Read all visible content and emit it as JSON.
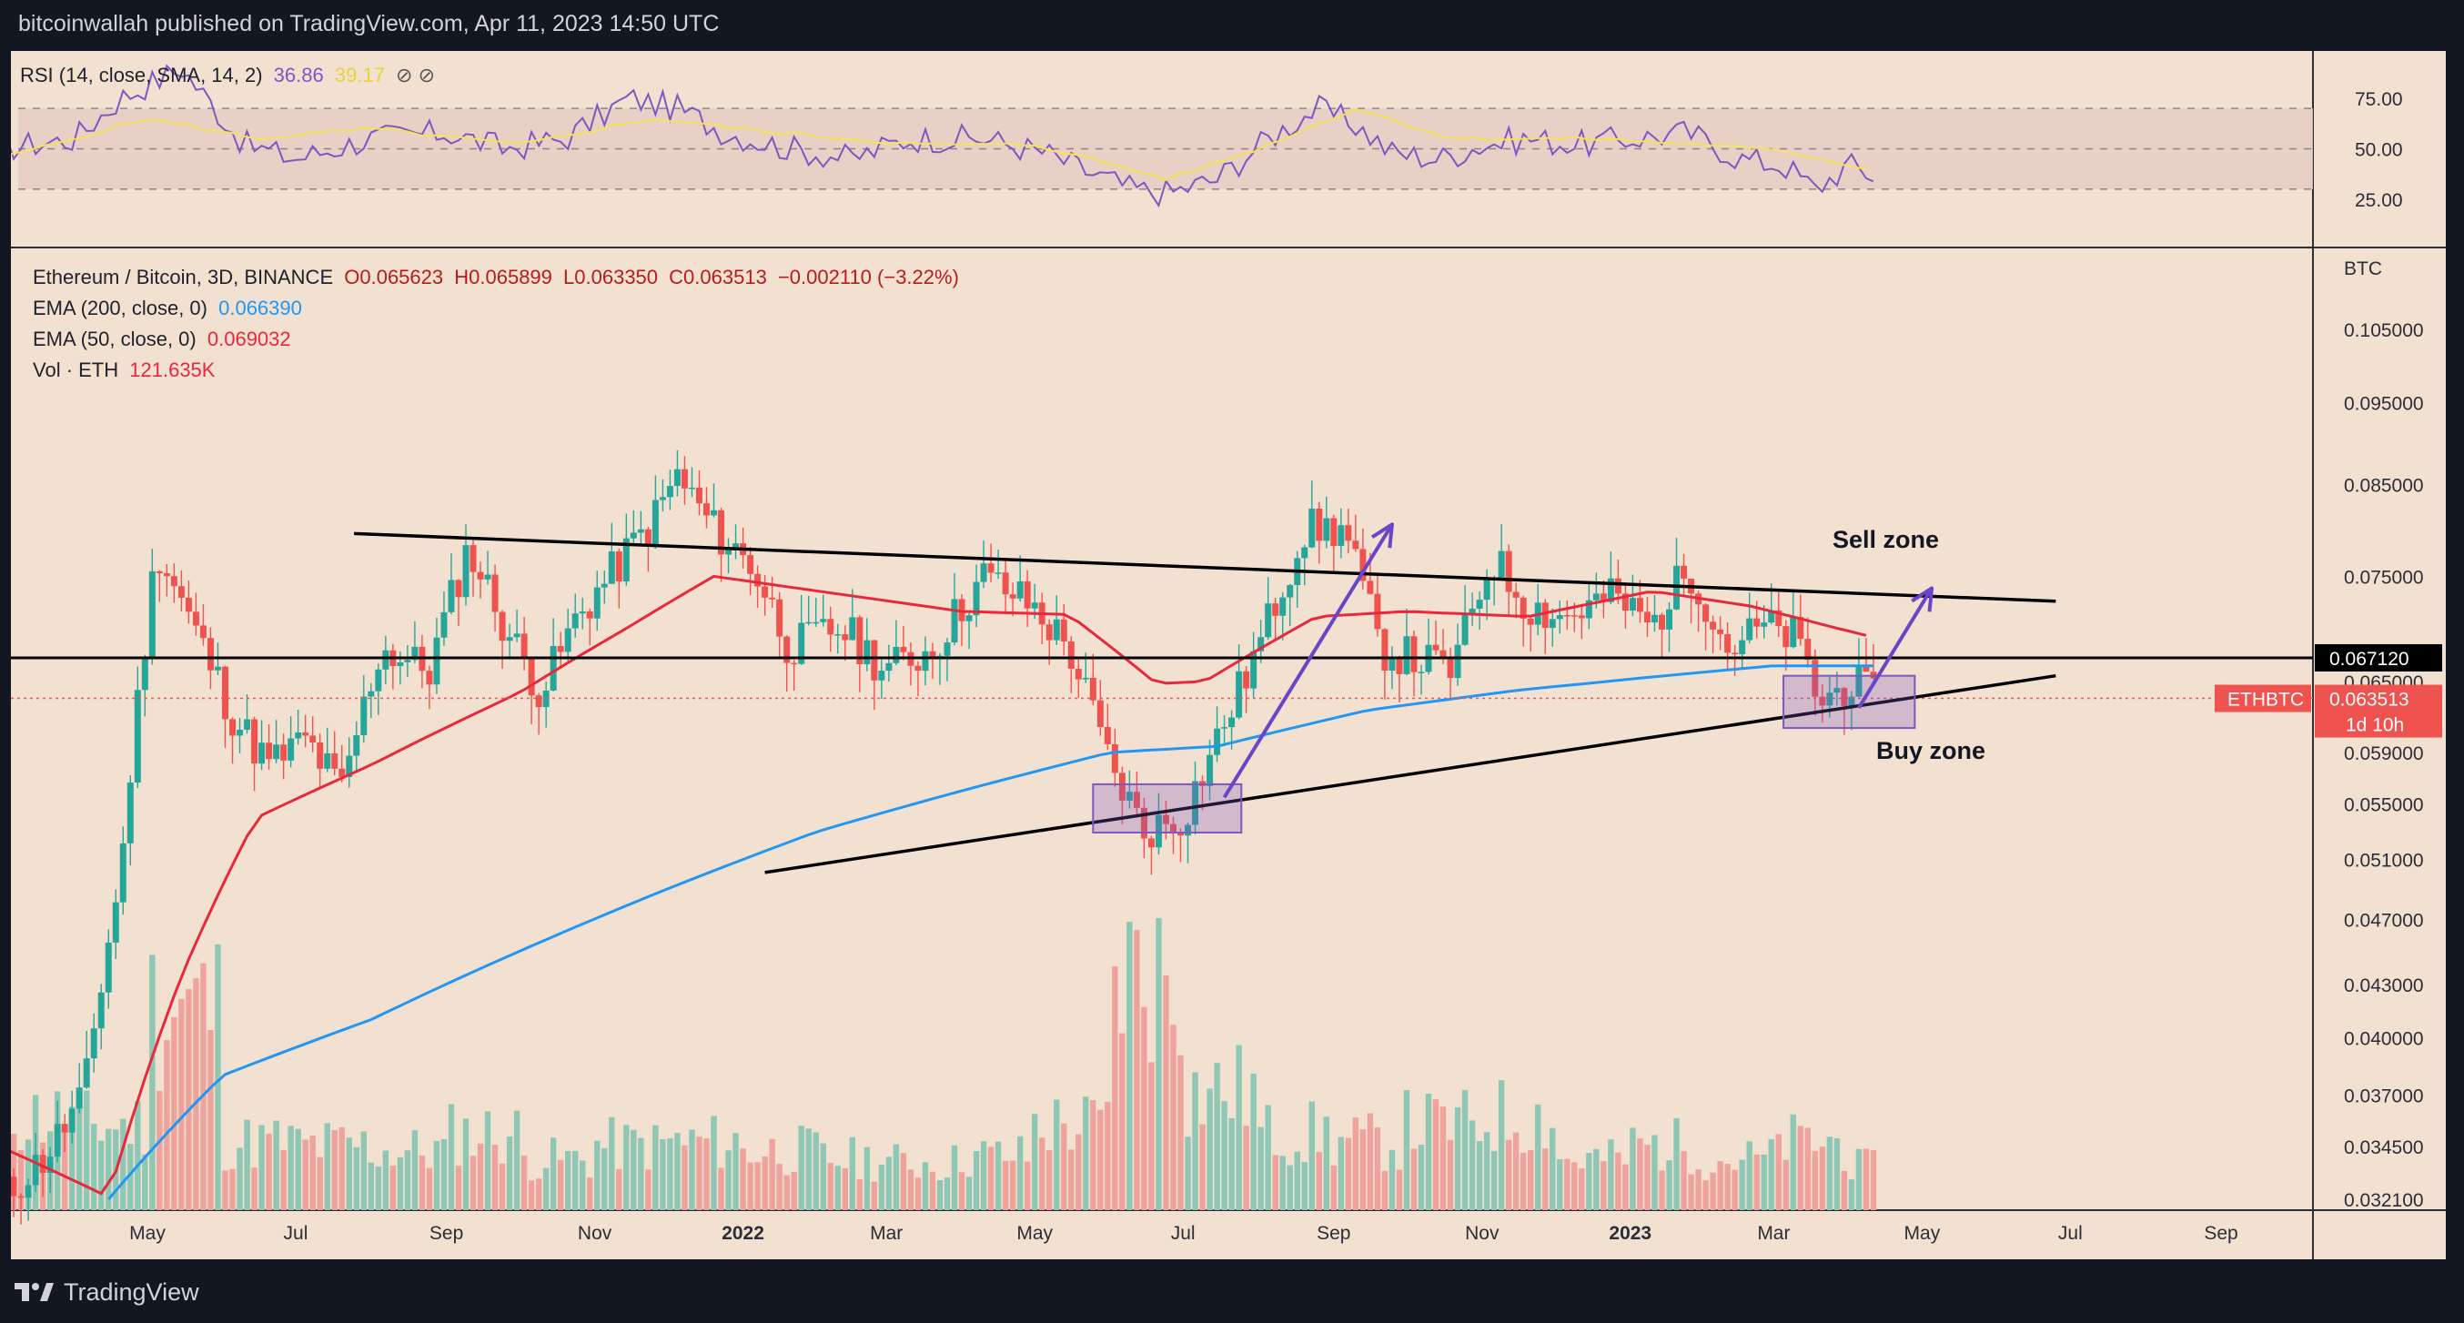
{
  "header": {
    "text": "bitcoinwallah published on TradingView.com, Apr 11, 2023 14:50 UTC"
  },
  "footer": {
    "brand": "TradingView"
  },
  "rsi_legend": {
    "name": "RSI (14, close, SMA, 14, 2)",
    "value1": "36.86",
    "value2": "39.17",
    "icons": "⊘ ⊘"
  },
  "main_legend": {
    "symbol": "Ethereum / Bitcoin, 3D, BINANCE",
    "open": "O0.065623",
    "high": "H0.065899",
    "low": "L0.063350",
    "close": "C0.063513",
    "change": "−0.002110 (−3.22%)",
    "ema200_label": "EMA (200, close, 0)",
    "ema200_value": "0.066390",
    "ema50_label": "EMA (50, close, 0)",
    "ema50_value": "0.069032",
    "vol_label": "Vol · ETH",
    "vol_value": "121.635K"
  },
  "annotations": {
    "sell_zone": "Sell zone",
    "buy_zone": "Buy zone"
  },
  "colors": {
    "background": "#f2e1d0",
    "up": "#26a69a",
    "down": "#ef5350",
    "ema200": "#2196f3",
    "ema50": "#e8283c",
    "rsi": "#7e57c2",
    "rsi_sma": "#f5e25a",
    "trendline": "#000000",
    "arrow": "#6a45c8"
  },
  "chart_data": [
    {
      "type": "line",
      "title": "RSI (14, close, SMA, 14, 2)",
      "yticks": [
        "75.00",
        "50.00",
        "25.00"
      ],
      "ylim": [
        15,
        95
      ],
      "bands": [
        30,
        50,
        70
      ],
      "series": [
        {
          "name": "RSI",
          "x": [
            "2021-03-01",
            "2021-04-01",
            "2021-04-20",
            "2021-05-15",
            "2021-06-10",
            "2021-07-01",
            "2021-08-01",
            "2021-09-01",
            "2021-09-25",
            "2021-10-20",
            "2021-11-15",
            "2021-12-05",
            "2021-12-25",
            "2022-01-20",
            "2022-02-15",
            "2022-03-10",
            "2022-04-10",
            "2022-05-05",
            "2022-05-20",
            "2022-06-10",
            "2022-06-25",
            "2022-07-15",
            "2022-08-05",
            "2022-08-25",
            "2022-09-10",
            "2022-09-25",
            "2022-10-15",
            "2022-11-01",
            "2022-11-20",
            "2022-12-10",
            "2023-01-01",
            "2023-01-25",
            "2023-02-15",
            "2023-03-05",
            "2023-03-18",
            "2023-04-01",
            "2023-04-11"
          ],
          "values": [
            50,
            55,
            75,
            90,
            52,
            45,
            55,
            58,
            50,
            55,
            75,
            70,
            58,
            50,
            45,
            55,
            55,
            48,
            40,
            30,
            28,
            35,
            55,
            70,
            62,
            48,
            45,
            52,
            55,
            52,
            55,
            58,
            45,
            42,
            30,
            42,
            36.86
          ]
        },
        {
          "name": "SMA",
          "x": [
            "2021-03-01",
            "2021-05-01",
            "2021-06-15",
            "2021-08-01",
            "2021-10-01",
            "2021-11-25",
            "2022-01-15",
            "2022-03-15",
            "2022-05-01",
            "2022-06-25",
            "2022-08-01",
            "2022-09-10",
            "2022-10-20",
            "2022-12-15",
            "2023-02-01",
            "2023-03-10",
            "2023-04-11"
          ],
          "values": [
            45,
            65,
            55,
            60,
            52,
            65,
            58,
            52,
            52,
            35,
            50,
            70,
            55,
            55,
            52,
            48,
            39.17
          ]
        }
      ]
    },
    {
      "type": "candlestick",
      "title": "Ethereum / Bitcoin, 3D, BINANCE",
      "ylabel": "BTC",
      "scale": "log",
      "yticks": [
        "0.105000",
        "0.095000",
        "0.085000",
        "0.075000",
        "0.065000",
        "0.059000",
        "0.055000",
        "0.051000",
        "0.047000",
        "0.043000",
        "0.040000",
        "0.037000",
        "0.034500",
        "0.032100"
      ],
      "xticks": [
        "May",
        "Jul",
        "Sep",
        "Nov",
        "2022",
        "Mar",
        "May",
        "Jul",
        "Sep",
        "Nov",
        "2023",
        "Mar",
        "May",
        "Jul",
        "Sep"
      ],
      "xtick_dates": [
        "2021-05-01",
        "2021-07-01",
        "2021-09-01",
        "2021-11-01",
        "2022-01-01",
        "2022-03-01",
        "2022-05-01",
        "2022-07-01",
        "2022-09-01",
        "2022-11-01",
        "2023-01-01",
        "2023-03-01",
        "2023-05-01",
        "2023-07-01",
        "2023-09-01"
      ],
      "bold_xticks": [
        "2022",
        "2023"
      ],
      "price_labels": [
        {
          "label": "0.067120",
          "value": 0.06712,
          "style": "horizontal-line"
        },
        {
          "label": "0.063513",
          "value": 0.063513,
          "ticker": "ETHBTC",
          "countdown": "1d 10h"
        }
      ],
      "close_path": {
        "x": [
          "2021-03-01",
          "2021-03-20",
          "2021-04-05",
          "2021-04-20",
          "2021-05-05",
          "2021-05-20",
          "2021-06-05",
          "2021-06-20",
          "2021-07-05",
          "2021-07-20",
          "2021-08-05",
          "2021-08-25",
          "2021-09-10",
          "2021-09-25",
          "2021-10-10",
          "2021-10-25",
          "2021-11-10",
          "2021-11-25",
          "2021-12-05",
          "2021-12-20",
          "2022-01-05",
          "2022-01-20",
          "2022-02-10",
          "2022-03-01",
          "2022-03-20",
          "2022-04-10",
          "2022-04-30",
          "2022-05-15",
          "2022-06-01",
          "2022-06-15",
          "2022-07-01",
          "2022-07-15",
          "2022-08-01",
          "2022-08-20",
          "2022-09-05",
          "2022-09-20",
          "2022-10-05",
          "2022-10-20",
          "2022-11-05",
          "2022-11-20",
          "2022-12-05",
          "2022-12-25",
          "2023-01-10",
          "2023-01-25",
          "2023-02-10",
          "2023-02-25",
          "2023-03-10",
          "2023-03-20",
          "2023-04-01",
          "2023-04-11"
        ],
        "values": [
          0.032,
          0.034,
          0.037,
          0.05,
          0.078,
          0.07,
          0.062,
          0.058,
          0.06,
          0.056,
          0.068,
          0.066,
          0.078,
          0.07,
          0.064,
          0.071,
          0.076,
          0.081,
          0.086,
          0.08,
          0.076,
          0.068,
          0.07,
          0.066,
          0.068,
          0.075,
          0.072,
          0.068,
          0.058,
          0.053,
          0.054,
          0.06,
          0.068,
          0.08,
          0.08,
          0.068,
          0.067,
          0.066,
          0.077,
          0.072,
          0.071,
          0.073,
          0.07,
          0.076,
          0.068,
          0.07,
          0.069,
          0.063,
          0.065,
          0.063513
        ]
      },
      "series": [
        {
          "name": "EMA (200, close, 0)",
          "x": [
            "2021-04-15",
            "2021-06-01",
            "2021-08-01",
            "2021-10-01",
            "2021-12-01",
            "2022-02-01",
            "2022-04-01",
            "2022-06-01",
            "2022-07-15",
            "2022-09-15",
            "2022-11-15",
            "2023-01-15",
            "2023-03-01",
            "2023-04-11"
          ],
          "values": [
            0.0321,
            0.038,
            0.041,
            0.045,
            0.049,
            0.053,
            0.056,
            0.059,
            0.0595,
            0.0625,
            0.0642,
            0.0655,
            0.0664,
            0.06639
          ]
        },
        {
          "name": "EMA (50, close, 0)",
          "x": [
            "2021-03-01",
            "2021-04-15",
            "2021-05-15",
            "2021-06-15",
            "2021-08-01",
            "2021-10-01",
            "2021-11-15",
            "2021-12-20",
            "2022-02-01",
            "2022-04-01",
            "2022-05-15",
            "2022-06-20",
            "2022-07-10",
            "2022-08-25",
            "2022-10-01",
            "2022-11-20",
            "2023-01-10",
            "2023-02-20",
            "2023-03-25",
            "2023-04-11"
          ],
          "values": [
            0.0345,
            0.0322,
            0.0435,
            0.054,
            0.058,
            0.064,
            0.07,
            0.075,
            0.0735,
            0.0715,
            0.0712,
            0.0648,
            0.065,
            0.071,
            0.0715,
            0.071,
            0.0735,
            0.072,
            0.07,
            0.069032
          ]
        },
        {
          "name": "Volume",
          "unit": "ETH",
          "last": "121.635K",
          "x": [
            "2021-03",
            "2021-04",
            "2021-05",
            "2021-06",
            "2021-07",
            "2021-08",
            "2021-09",
            "2021-10",
            "2021-11",
            "2021-12",
            "2022-01",
            "2022-02",
            "2022-03",
            "2022-04",
            "2022-05",
            "2022-06",
            "2022-07",
            "2022-08",
            "2022-09",
            "2022-10",
            "2022-11",
            "2022-12",
            "2023-01",
            "2023-02",
            "2023-03",
            "2023-04"
          ],
          "values": [
            55,
            50,
            120,
            40,
            38,
            35,
            45,
            30,
            38,
            40,
            35,
            30,
            28,
            32,
            50,
            140,
            70,
            45,
            40,
            50,
            55,
            30,
            38,
            30,
            40,
            25
          ]
        }
      ],
      "drawings": [
        {
          "type": "trendline",
          "from": [
            "2021-07-25",
            0.0795
          ],
          "to": [
            "2023-06-25",
            0.0725
          ]
        },
        {
          "type": "trendline",
          "from": [
            "2022-01-10",
            0.0501
          ],
          "to": [
            "2023-06-25",
            0.0655
          ]
        },
        {
          "type": "rectangle",
          "from": [
            "2022-05-25",
            0.0565
          ],
          "to": [
            "2022-07-25",
            0.0529
          ],
          "label": ""
        },
        {
          "type": "rectangle",
          "from": [
            "2023-03-05",
            0.0655
          ],
          "to": [
            "2023-04-28",
            0.061
          ],
          "label": ""
        },
        {
          "type": "arrow",
          "from": [
            "2022-07-18",
            0.0555
          ],
          "to": [
            "2022-09-25",
            0.0805
          ]
        },
        {
          "type": "arrow",
          "from": [
            "2023-04-05",
            0.0627
          ],
          "to": [
            "2023-05-05",
            0.0738
          ]
        }
      ]
    }
  ]
}
